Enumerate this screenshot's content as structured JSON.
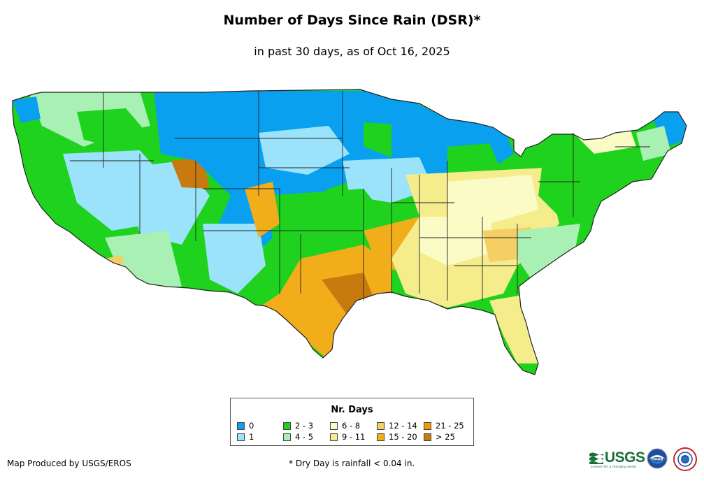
{
  "title": "Number of Days Since Rain (DSR)*",
  "subtitle": "in past 30 days, as of Oct 16, 2025",
  "legend": {
    "title": "Nr. Days",
    "items": [
      {
        "label": "0",
        "color": "#0aa0f0"
      },
      {
        "label": "1",
        "color": "#9be3fb"
      },
      {
        "label": "2 - 3",
        "color": "#1ed21e"
      },
      {
        "label": "4 - 5",
        "color": "#a8f0b4"
      },
      {
        "label": "6 - 8",
        "color": "#fbfbc6"
      },
      {
        "label": "9 - 11",
        "color": "#f5ec8c"
      },
      {
        "label": "12 - 14",
        "color": "#f5cf64"
      },
      {
        "label": "15 - 20",
        "color": "#f2ad1b"
      },
      {
        "label": "21 - 25",
        "color": "#f09c0a"
      },
      {
        "label": "> 25",
        "color": "#c87a0f"
      }
    ]
  },
  "credit": "Map Produced by USGS/EROS",
  "footnote": "* Dry Day is rainfall < 0.04 in.",
  "logos": {
    "usgs": "USGS",
    "usgs_tagline": "science for a changing world",
    "noaa": "noaa"
  }
}
